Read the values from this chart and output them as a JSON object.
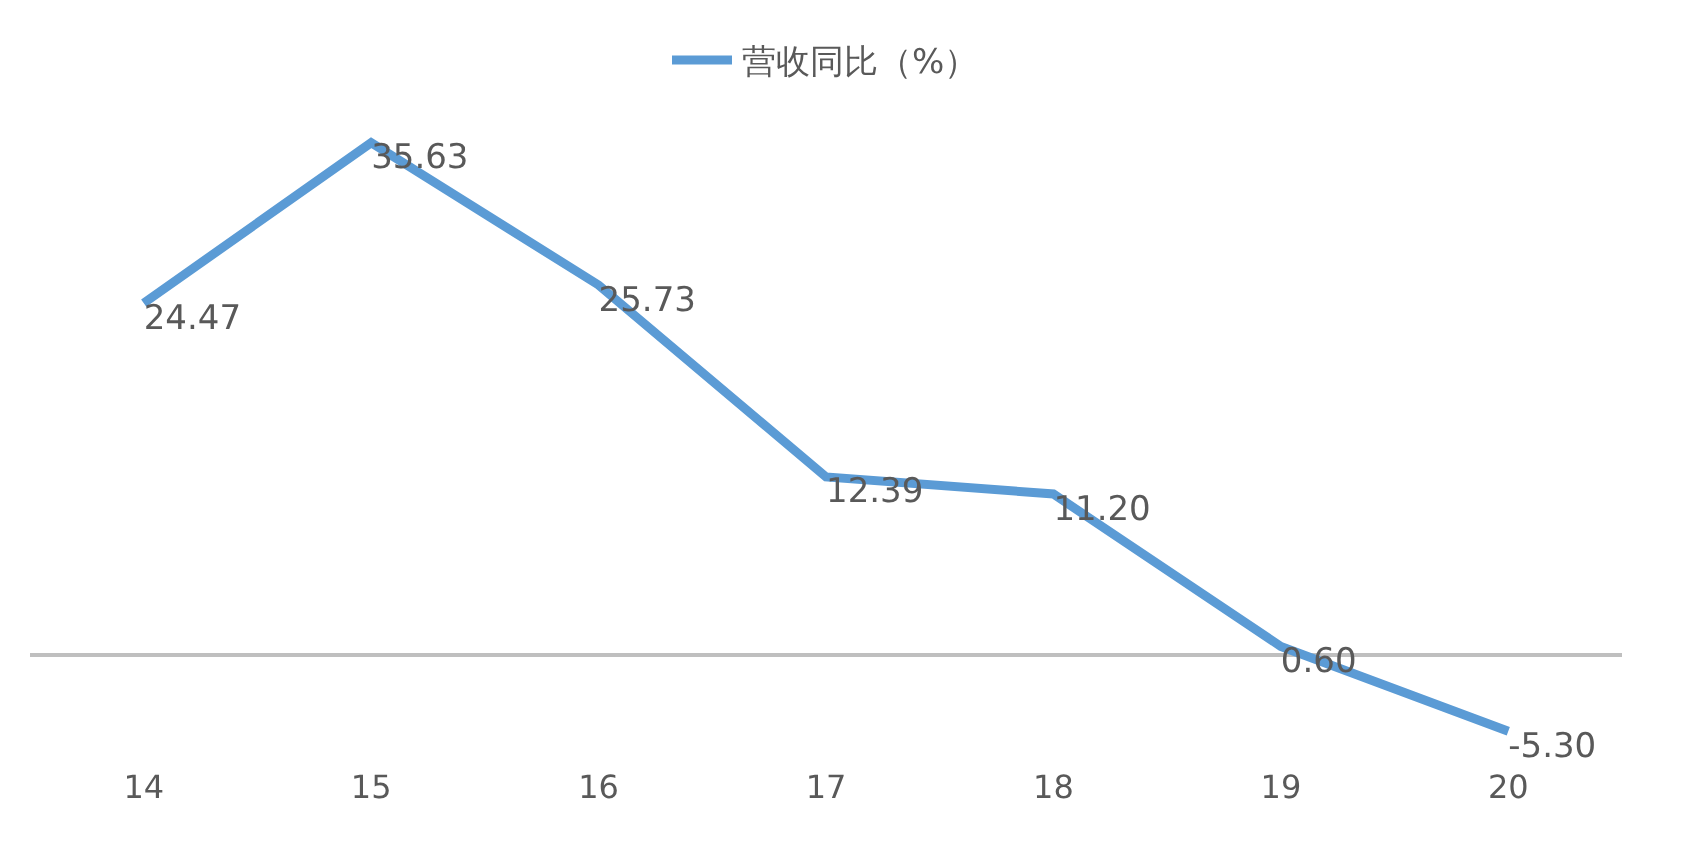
{
  "chart_data": {
    "type": "line",
    "categories": [
      "14",
      "15",
      "16",
      "17",
      "18",
      "19",
      "20"
    ],
    "series": [
      {
        "name": "营收同比（%）",
        "color": "#5b9bd5",
        "values": [
          24.47,
          35.63,
          25.73,
          12.39,
          11.2,
          0.6,
          -5.3
        ],
        "value_labels": [
          "24.47",
          "35.63",
          "25.73",
          "12.39",
          "11.20",
          "0.60",
          "-5.30"
        ]
      }
    ],
    "legend": "top",
    "marker": "none",
    "line_style": "solid",
    "tick_labels": "x"
  }
}
